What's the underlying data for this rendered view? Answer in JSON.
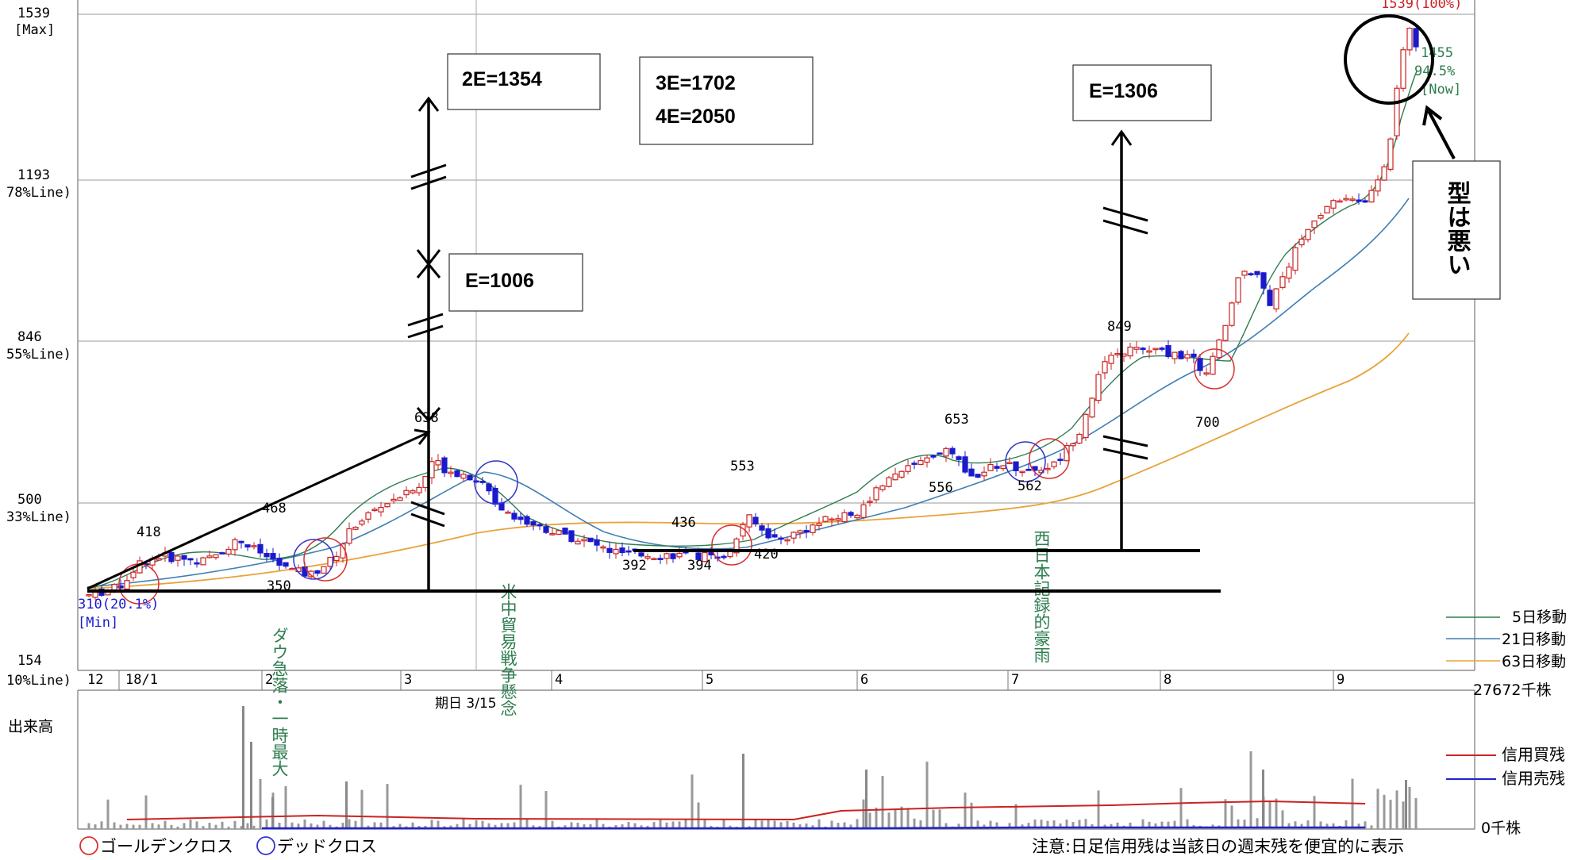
{
  "chart_data": {
    "type": "candlestick",
    "price_axis_labels": [
      {
        "value": 1539,
        "line1": "1539",
        "line2": "[Max]"
      },
      {
        "value": 1193,
        "line1": "1193",
        "line2": "78%Line)"
      },
      {
        "value": 846,
        "line1": "846",
        "line2": "55%Line)"
      },
      {
        "value": 500,
        "line1": "500",
        "line2": "33%Line)"
      },
      {
        "value": 154,
        "line1": "154",
        "line2": "10%Line)"
      }
    ],
    "price_range": [
      154,
      1539
    ],
    "month_labels": [
      "12",
      "18/1",
      "2",
      "3",
      "4",
      "5",
      "6",
      "7",
      "8",
      "9"
    ],
    "price_points": [
      {
        "label": "418",
        "value": 418
      },
      {
        "label": "468",
        "value": 468
      },
      {
        "label": "350",
        "value": 350
      },
      {
        "label": "638",
        "value": 638
      },
      {
        "label": "553",
        "value": 553
      },
      {
        "label": "436",
        "value": 436
      },
      {
        "label": "392",
        "value": 392
      },
      {
        "label": "394",
        "value": 394
      },
      {
        "label": "420",
        "value": 420
      },
      {
        "label": "653",
        "value": 653
      },
      {
        "label": "556",
        "value": 556
      },
      {
        "label": "562",
        "value": 562
      },
      {
        "label": "849",
        "value": 849
      },
      {
        "label": "700",
        "value": 700
      }
    ],
    "min_label": {
      "line1": "310(20.1%)",
      "line2": "[Min]",
      "value": 310
    },
    "max_label": {
      "text": "1539(100%)",
      "value": 1539
    },
    "now_label": {
      "line1": "1455",
      "line2": "94.5%",
      "line3": "[Now]",
      "value": 1455
    },
    "annotations": {
      "e_2": "2E=1354",
      "e_3": "3E=1702",
      "e_4": "4E=2050",
      "e_1006": "E=1006",
      "e_1306": "E=1306",
      "pattern_note": "型は悪い"
    },
    "events": [
      {
        "text": "ダウ急落・一時最大"
      },
      {
        "text": "米中貿易戦争懸念"
      },
      {
        "text": "西日本記録的豪雨"
      }
    ],
    "date_marker": "期日 3/15",
    "legend": [
      {
        "name": "5日移動",
        "color": "#2e7d4f"
      },
      {
        "name": "21日移動",
        "color": "#3f7fb5"
      },
      {
        "name": "63日移動",
        "color": "#e8a33a"
      }
    ],
    "volume": {
      "title": "出来高",
      "max_label": "27672千株",
      "zero_label": "0千株",
      "legend": [
        {
          "name": "信用買残",
          "color": "#cc2222"
        },
        {
          "name": "信用売残",
          "color": "#2222cc"
        }
      ]
    },
    "cross_legend": {
      "golden": "ゴールデンクロス",
      "dead": "デッドクロス"
    },
    "footer_note": "注意:日足信用残は当該日の週末残を便宜的に表示",
    "colors": {
      "up": "#cc2222",
      "down": "#1a1acc",
      "golden": "#d83030",
      "dead": "#3333cc"
    }
  }
}
